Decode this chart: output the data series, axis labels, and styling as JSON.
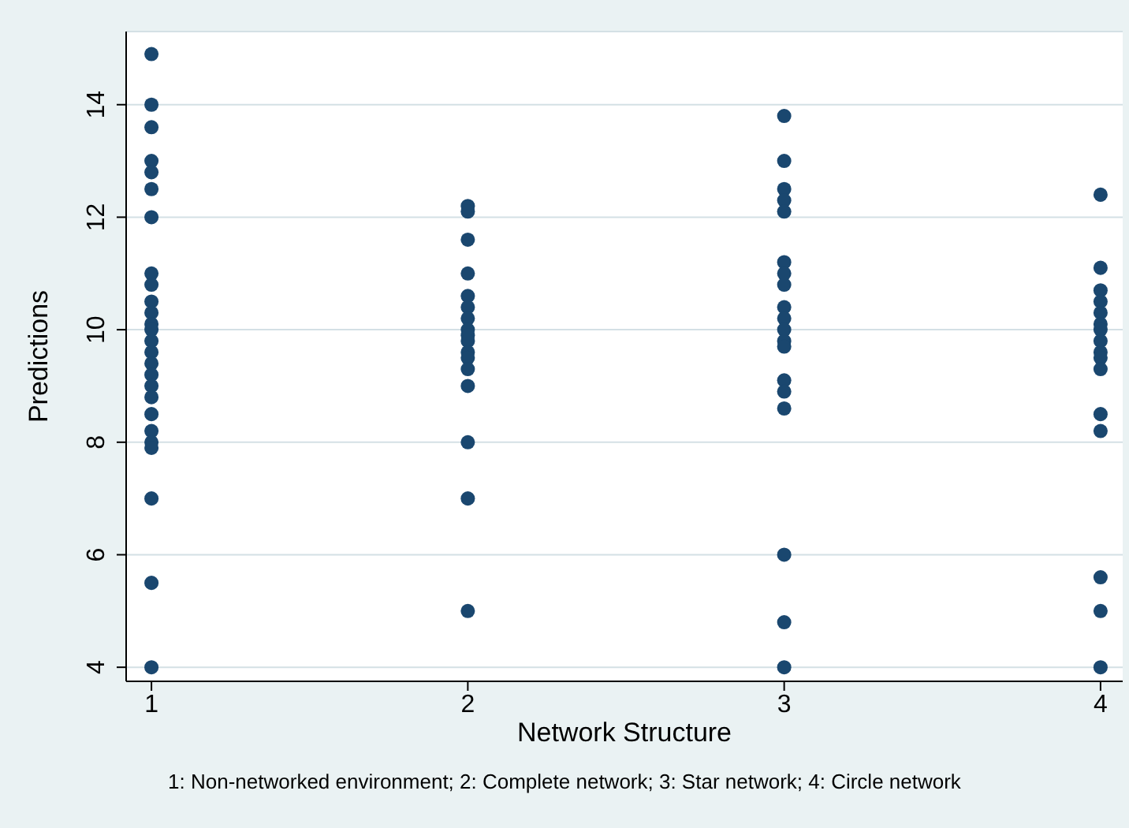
{
  "chart_data": {
    "type": "scatter",
    "xlabel": "Network Structure",
    "ylabel": "Predictions",
    "annotations": [
      "1: Non-networked environment; 2: Complete network; 3: Star network; 4: Circle network"
    ],
    "x": [
      1,
      1,
      1,
      1,
      1,
      1,
      1,
      1,
      1,
      1,
      1,
      1,
      1,
      1,
      1,
      1,
      1,
      1,
      1,
      1,
      1,
      1,
      1,
      1,
      1,
      1,
      2,
      2,
      2,
      2,
      2,
      2,
      2,
      2,
      2,
      2,
      2,
      2,
      2,
      2,
      2,
      2,
      2,
      3,
      3,
      3,
      3,
      3,
      3,
      3,
      3,
      3,
      3,
      3,
      3,
      3,
      3,
      3,
      3,
      3,
      3,
      3,
      4,
      4,
      4,
      4,
      4,
      4,
      4,
      4,
      4,
      4,
      4,
      4,
      4,
      4,
      4,
      4
    ],
    "values": [
      14.9,
      14,
      13.6,
      13,
      12.8,
      12.5,
      12,
      11,
      10.8,
      10.5,
      10.3,
      10.1,
      10,
      9.8,
      9.6,
      9.4,
      9.2,
      9,
      8.8,
      8.5,
      8.2,
      8,
      7.9,
      7,
      5.5,
      4,
      12.2,
      12.1,
      11.6,
      11,
      10.6,
      10.4,
      10.2,
      10,
      9.9,
      9.8,
      9.6,
      9.5,
      9.3,
      9,
      8,
      7,
      5,
      13.8,
      13,
      12.5,
      12.3,
      12.1,
      11.2,
      11,
      10.8,
      10.4,
      10.2,
      10,
      9.8,
      9.7,
      9.1,
      8.9,
      8.6,
      6,
      4.8,
      4,
      12.4,
      11.1,
      10.7,
      10.5,
      10.3,
      10.1,
      10,
      9.8,
      9.6,
      9.5,
      9.3,
      8.5,
      8.2,
      5.6,
      5,
      4
    ],
    "color": "#1a476f",
    "marker": "circle",
    "grid": "y",
    "xlim": [
      0.92,
      4.07
    ],
    "xticks": [
      1,
      2,
      3,
      4
    ],
    "ylim": [
      3.75,
      15.3
    ],
    "yticks": [
      4,
      6,
      8,
      10,
      12,
      14
    ]
  }
}
